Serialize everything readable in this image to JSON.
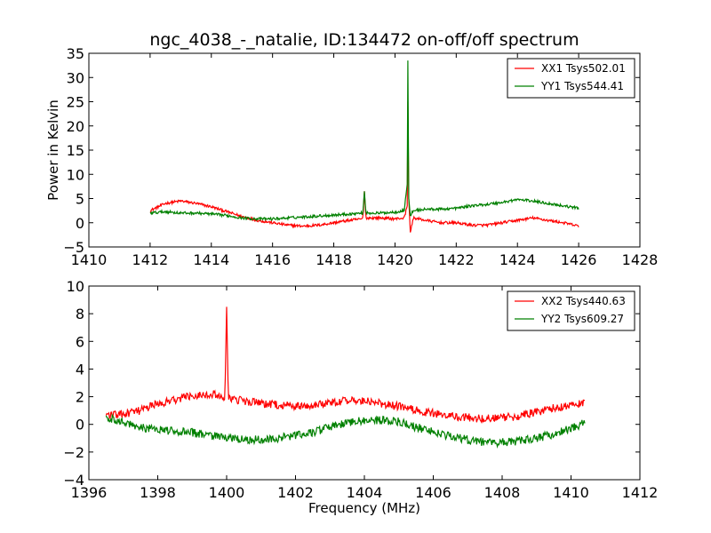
{
  "chart_data": [
    {
      "type": "line",
      "title": "ngc_4038_-_natalie, ID:134472 on-off/off spectrum",
      "xlabel": "",
      "ylabel": "Power in Kelvin",
      "xlim": [
        1410,
        1428
      ],
      "ylim": [
        -5,
        35
      ],
      "xticks": [
        "1410",
        "1412",
        "1414",
        "1416",
        "1418",
        "1420",
        "1422",
        "1424",
        "1426",
        "1428"
      ],
      "yticks": [
        "−5",
        "0",
        "5",
        "10",
        "15",
        "20",
        "25",
        "30",
        "35"
      ],
      "grid": false,
      "legend_position": "top-right",
      "series": [
        {
          "name": "XX1 Tsys502.01",
          "color": "#ff0000",
          "x": [
            1412.0,
            1412.5,
            1413.0,
            1413.5,
            1414.0,
            1414.5,
            1415.0,
            1415.5,
            1416.0,
            1416.5,
            1417.0,
            1417.5,
            1418.0,
            1418.5,
            1418.95,
            1419.0,
            1419.05,
            1419.5,
            1420.0,
            1420.3,
            1420.4,
            1420.42,
            1420.45,
            1420.5,
            1420.6,
            1421.0,
            1421.5,
            1422.0,
            1422.5,
            1423.0,
            1423.5,
            1424.0,
            1424.5,
            1425.0,
            1425.5,
            1426.0
          ],
          "values": [
            2.5,
            4.0,
            4.5,
            4.0,
            3.3,
            2.3,
            1.3,
            0.5,
            0.0,
            -0.5,
            -0.7,
            -0.5,
            0.0,
            0.5,
            0.8,
            6.5,
            1.0,
            1.0,
            0.8,
            1.0,
            3.5,
            25.0,
            5.0,
            -2.0,
            1.0,
            0.5,
            0.0,
            0.0,
            -0.5,
            -0.5,
            0.0,
            0.5,
            1.0,
            0.5,
            0.0,
            -0.7
          ]
        },
        {
          "name": "YY1 Tsys544.41",
          "color": "#008000",
          "x": [
            1412.0,
            1412.5,
            1413.0,
            1413.5,
            1414.0,
            1414.5,
            1415.0,
            1415.5,
            1416.0,
            1416.5,
            1417.0,
            1417.5,
            1418.0,
            1418.5,
            1418.95,
            1419.0,
            1419.05,
            1419.5,
            1420.0,
            1420.3,
            1420.4,
            1420.42,
            1420.45,
            1420.5,
            1420.6,
            1421.0,
            1421.5,
            1422.0,
            1422.5,
            1423.0,
            1423.5,
            1424.0,
            1424.5,
            1425.0,
            1425.5,
            1426.0
          ],
          "values": [
            2.0,
            2.3,
            2.0,
            2.0,
            1.8,
            1.5,
            1.0,
            0.8,
            0.8,
            1.0,
            1.2,
            1.4,
            1.6,
            1.8,
            2.0,
            6.5,
            2.0,
            2.0,
            2.2,
            2.5,
            8.0,
            33.5,
            5.0,
            1.5,
            2.5,
            2.8,
            2.8,
            3.0,
            3.5,
            3.8,
            4.2,
            4.8,
            4.5,
            4.0,
            3.5,
            3.0
          ]
        }
      ]
    },
    {
      "type": "line",
      "title": "",
      "xlabel": "Frequency (MHz)",
      "ylabel": "",
      "xlim": [
        1396,
        1412
      ],
      "ylim": [
        -4,
        10
      ],
      "xticks": [
        "1396",
        "1398",
        "1400",
        "1402",
        "1404",
        "1406",
        "1408",
        "1410",
        "1412"
      ],
      "yticks": [
        "−4",
        "−2",
        "0",
        "2",
        "4",
        "6",
        "8",
        "10"
      ],
      "grid": false,
      "legend_position": "top-right",
      "series": [
        {
          "name": "XX2 Tsys440.63",
          "color": "#ff0000",
          "x": [
            1396.5,
            1397.0,
            1397.5,
            1398.0,
            1398.5,
            1399.0,
            1399.5,
            1399.95,
            1400.0,
            1400.05,
            1400.5,
            1401.0,
            1401.5,
            1402.0,
            1402.5,
            1403.0,
            1403.5,
            1404.0,
            1404.5,
            1405.0,
            1405.5,
            1406.0,
            1406.5,
            1407.0,
            1407.5,
            1408.0,
            1408.5,
            1409.0,
            1409.5,
            1410.0,
            1410.4
          ],
          "values": [
            0.7,
            0.7,
            1.0,
            1.5,
            1.8,
            2.1,
            2.2,
            2.0,
            8.5,
            1.8,
            1.7,
            1.5,
            1.4,
            1.3,
            1.4,
            1.6,
            1.7,
            1.7,
            1.5,
            1.3,
            1.0,
            0.8,
            0.6,
            0.5,
            0.4,
            0.5,
            0.6,
            0.9,
            1.2,
            1.4,
            1.5
          ]
        },
        {
          "name": "YY2 Tsys609.27",
          "color": "#008000",
          "x": [
            1396.5,
            1397.0,
            1397.5,
            1398.0,
            1398.5,
            1399.0,
            1399.5,
            1400.0,
            1400.5,
            1401.0,
            1401.5,
            1402.0,
            1402.5,
            1403.0,
            1403.5,
            1404.0,
            1404.5,
            1405.0,
            1405.5,
            1406.0,
            1406.5,
            1407.0,
            1407.5,
            1408.0,
            1408.5,
            1409.0,
            1409.5,
            1410.0,
            1410.4
          ],
          "values": [
            0.5,
            0.2,
            -0.2,
            -0.4,
            -0.5,
            -0.6,
            -0.8,
            -1.0,
            -1.1,
            -1.1,
            -1.0,
            -0.8,
            -0.6,
            -0.2,
            0.1,
            0.3,
            0.3,
            0.2,
            -0.2,
            -0.5,
            -0.9,
            -1.1,
            -1.3,
            -1.3,
            -1.2,
            -1.0,
            -0.7,
            -0.3,
            0.1
          ]
        }
      ]
    }
  ]
}
